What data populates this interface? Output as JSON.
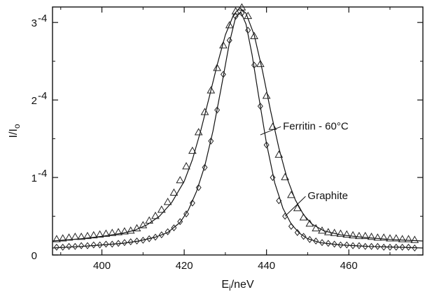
{
  "chart_data": {
    "type": "scatter",
    "xlabel": "E_i/neV",
    "ylabel": "I/I_o",
    "xlim": [
      388,
      478
    ],
    "ylim": [
      0,
      3.2
    ],
    "xticks": [
      {
        "value": 400,
        "label": "400"
      },
      {
        "value": 420,
        "label": "420"
      },
      {
        "value": 440,
        "label": "440"
      },
      {
        "value": 460,
        "label": "460"
      }
    ],
    "yticks": [
      {
        "value": 0,
        "label": "0",
        "sup": ""
      },
      {
        "value": 1,
        "label": "1",
        "sup": "-4"
      },
      {
        "value": 2,
        "label": "2",
        "sup": "-4"
      },
      {
        "value": 3,
        "label": "3",
        "sup": "-4"
      }
    ],
    "grid": false,
    "series": [
      {
        "name": "Ferritin - 60°C",
        "marker": "triangle",
        "points": [
          [
            389,
            0.2
          ],
          [
            390.5,
            0.21
          ],
          [
            392,
            0.22
          ],
          [
            393.5,
            0.23
          ],
          [
            395,
            0.23
          ],
          [
            396.5,
            0.24
          ],
          [
            398,
            0.25
          ],
          [
            399.5,
            0.26
          ],
          [
            401,
            0.27
          ],
          [
            402.5,
            0.28
          ],
          [
            404,
            0.29
          ],
          [
            405.5,
            0.3
          ],
          [
            407,
            0.31
          ],
          [
            408.5,
            0.34
          ],
          [
            410,
            0.38
          ],
          [
            411.5,
            0.44
          ],
          [
            413,
            0.5
          ],
          [
            414.5,
            0.58
          ],
          [
            416,
            0.68
          ],
          [
            417.5,
            0.8
          ],
          [
            419,
            0.96
          ],
          [
            420.5,
            1.14
          ],
          [
            422,
            1.34
          ],
          [
            423.5,
            1.58
          ],
          [
            425,
            1.84
          ],
          [
            426.5,
            2.12
          ],
          [
            428,
            2.41
          ],
          [
            429.5,
            2.7
          ],
          [
            431,
            2.96
          ],
          [
            432.5,
            3.14
          ],
          [
            434,
            3.19
          ],
          [
            435.5,
            3.08
          ],
          [
            437,
            2.82
          ],
          [
            438.5,
            2.46
          ],
          [
            440,
            2.05
          ],
          [
            441.5,
            1.65
          ],
          [
            443,
            1.29
          ],
          [
            444.5,
            1.0
          ],
          [
            446,
            0.77
          ],
          [
            447.5,
            0.6
          ],
          [
            449,
            0.48
          ],
          [
            450.5,
            0.4
          ],
          [
            452,
            0.34
          ],
          [
            453.5,
            0.31
          ],
          [
            455,
            0.29
          ],
          [
            456.5,
            0.28
          ],
          [
            458,
            0.27
          ],
          [
            459.5,
            0.26
          ],
          [
            461,
            0.25
          ],
          [
            462.5,
            0.24
          ],
          [
            464,
            0.24
          ],
          [
            465.5,
            0.23
          ],
          [
            467,
            0.22
          ],
          [
            468.5,
            0.22
          ],
          [
            470,
            0.21
          ],
          [
            471.5,
            0.21
          ],
          [
            473,
            0.2
          ],
          [
            474.5,
            0.2
          ],
          [
            476,
            0.19
          ]
        ],
        "fit": [
          [
            388,
            0.18
          ],
          [
            395,
            0.21
          ],
          [
            400,
            0.24
          ],
          [
            405,
            0.28
          ],
          [
            408,
            0.32
          ],
          [
            411,
            0.39
          ],
          [
            414,
            0.5
          ],
          [
            417,
            0.68
          ],
          [
            420,
            0.95
          ],
          [
            422,
            1.23
          ],
          [
            424,
            1.6
          ],
          [
            426,
            2.02
          ],
          [
            428,
            2.45
          ],
          [
            430,
            2.84
          ],
          [
            432,
            3.1
          ],
          [
            433.5,
            3.19
          ],
          [
            435,
            3.12
          ],
          [
            437,
            2.84
          ],
          [
            439,
            2.38
          ],
          [
            441,
            1.86
          ],
          [
            443,
            1.38
          ],
          [
            445,
            0.99
          ],
          [
            447,
            0.71
          ],
          [
            449,
            0.52
          ],
          [
            451,
            0.4
          ],
          [
            454,
            0.31
          ],
          [
            458,
            0.26
          ],
          [
            463,
            0.23
          ],
          [
            470,
            0.2
          ],
          [
            478,
            0.18
          ]
        ]
      },
      {
        "name": "Graphite",
        "marker": "diamond",
        "points": [
          [
            389,
            0.1
          ],
          [
            390.5,
            0.1
          ],
          [
            392,
            0.11
          ],
          [
            393.5,
            0.11
          ],
          [
            395,
            0.12
          ],
          [
            396.5,
            0.12
          ],
          [
            398,
            0.13
          ],
          [
            399.5,
            0.13
          ],
          [
            401,
            0.14
          ],
          [
            402.5,
            0.14
          ],
          [
            404,
            0.15
          ],
          [
            405.5,
            0.16
          ],
          [
            407,
            0.17
          ],
          [
            408.5,
            0.18
          ],
          [
            410,
            0.19
          ],
          [
            411.5,
            0.21
          ],
          [
            413,
            0.23
          ],
          [
            414.5,
            0.26
          ],
          [
            416,
            0.3
          ],
          [
            417.5,
            0.35
          ],
          [
            419,
            0.43
          ],
          [
            420.5,
            0.53
          ],
          [
            422,
            0.67
          ],
          [
            423.5,
            0.87
          ],
          [
            425,
            1.13
          ],
          [
            426.5,
            1.47
          ],
          [
            428,
            1.87
          ],
          [
            429.5,
            2.33
          ],
          [
            431,
            2.77
          ],
          [
            432.5,
            3.08
          ],
          [
            434,
            3.12
          ],
          [
            435.5,
            2.9
          ],
          [
            437,
            2.45
          ],
          [
            438.5,
            1.92
          ],
          [
            440,
            1.42
          ],
          [
            441.5,
            1.0
          ],
          [
            443,
            0.7
          ],
          [
            444.5,
            0.5
          ],
          [
            446,
            0.37
          ],
          [
            447.5,
            0.29
          ],
          [
            449,
            0.24
          ],
          [
            450.5,
            0.2
          ],
          [
            452,
            0.18
          ],
          [
            453.5,
            0.16
          ],
          [
            455,
            0.15
          ],
          [
            456.5,
            0.14
          ],
          [
            458,
            0.13
          ],
          [
            459.5,
            0.13
          ],
          [
            461,
            0.12
          ],
          [
            462.5,
            0.12
          ],
          [
            464,
            0.11
          ],
          [
            465.5,
            0.11
          ],
          [
            467,
            0.11
          ],
          [
            468.5,
            0.1
          ],
          [
            470,
            0.1
          ],
          [
            471.5,
            0.1
          ],
          [
            473,
            0.1
          ],
          [
            474.5,
            0.1
          ],
          [
            476,
            0.09
          ]
        ],
        "fit": [
          [
            388,
            0.09
          ],
          [
            395,
            0.11
          ],
          [
            400,
            0.13
          ],
          [
            405,
            0.15
          ],
          [
            409,
            0.18
          ],
          [
            413,
            0.23
          ],
          [
            416,
            0.29
          ],
          [
            419,
            0.42
          ],
          [
            421,
            0.58
          ],
          [
            423,
            0.82
          ],
          [
            425,
            1.15
          ],
          [
            427,
            1.6
          ],
          [
            429,
            2.16
          ],
          [
            431,
            2.74
          ],
          [
            432.5,
            3.07
          ],
          [
            433.8,
            3.13
          ],
          [
            435,
            2.98
          ],
          [
            436.5,
            2.58
          ],
          [
            438,
            2.08
          ],
          [
            440,
            1.44
          ],
          [
            442,
            0.93
          ],
          [
            444,
            0.6
          ],
          [
            446,
            0.4
          ],
          [
            448,
            0.28
          ],
          [
            450,
            0.21
          ],
          [
            453,
            0.16
          ],
          [
            458,
            0.13
          ],
          [
            465,
            0.11
          ],
          [
            472,
            0.1
          ],
          [
            478,
            0.09
          ]
        ]
      }
    ],
    "annotations": [
      {
        "text": "Ferritin - 60°C",
        "x": 444,
        "y": 1.62,
        "point_x": 438.5,
        "point_y": 1.55
      },
      {
        "text": "Graphite",
        "x": 450,
        "y": 0.72,
        "point_x": 444.5,
        "point_y": 0.5
      }
    ]
  }
}
